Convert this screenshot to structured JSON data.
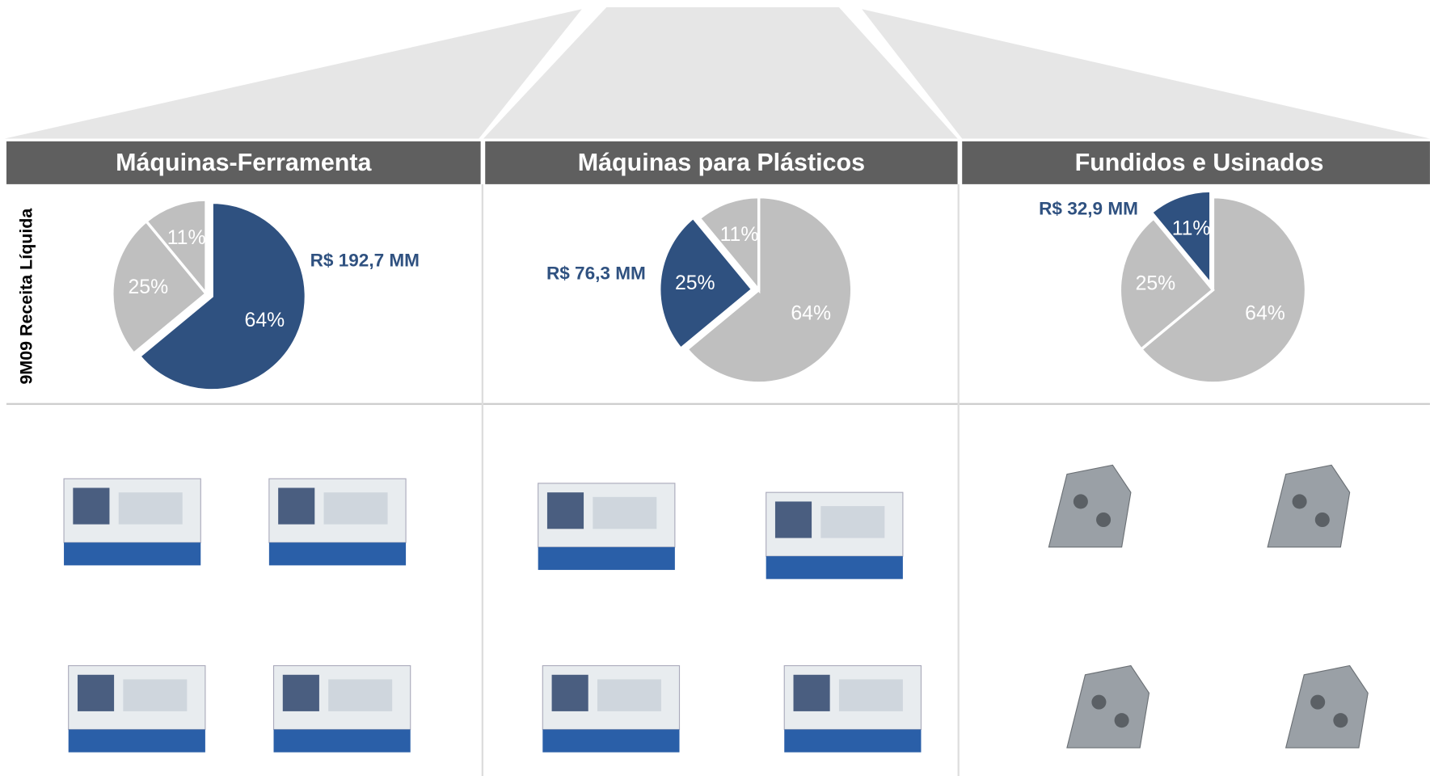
{
  "side_label": "9M09 Receita Líquida",
  "chart_data": [
    {
      "type": "pie",
      "title": "Máquinas-Ferramenta",
      "values": [
        64,
        25,
        11
      ],
      "value_labels": [
        "64%",
        "25%",
        "11%"
      ],
      "colors": [
        "#2f5180",
        "#bfbfbf",
        "#bfbfbf"
      ],
      "highlight": 0,
      "annotation": "R$ 192,7 MM"
    },
    {
      "type": "pie",
      "title": "Máquinas para Plásticos",
      "values": [
        64,
        25,
        11
      ],
      "value_labels": [
        "64%",
        "25%",
        "11%"
      ],
      "colors": [
        "#bfbfbf",
        "#2f5180",
        "#bfbfbf"
      ],
      "highlight": 1,
      "annotation": "R$ 76,3 MM"
    },
    {
      "type": "pie",
      "title": "Fundidos e Usinados",
      "values": [
        64,
        25,
        11
      ],
      "value_labels": [
        "64%",
        "25%",
        "11%"
      ],
      "colors": [
        "#bfbfbf",
        "#bfbfbf",
        "#2f5180"
      ],
      "highlight": 2,
      "annotation": "R$ 32,9 MM"
    }
  ]
}
